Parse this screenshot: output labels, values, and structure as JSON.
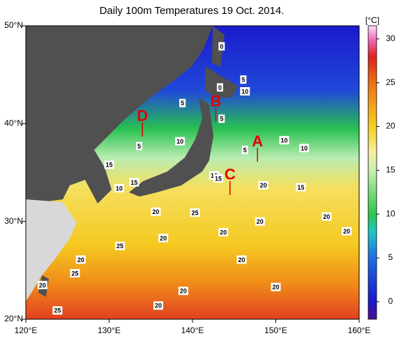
{
  "map": {
    "title": "Daily 100m Temperatures 19 Oct. 2014.",
    "lonlim": [
      120,
      160
    ],
    "latlim": [
      20,
      50
    ],
    "lon_ticks": [
      {
        "value": 120,
        "label": "120°E"
      },
      {
        "value": 130,
        "label": "130°E"
      },
      {
        "value": 140,
        "label": "140°E"
      },
      {
        "value": 150,
        "label": "150°E"
      },
      {
        "value": 160,
        "label": "160°E"
      }
    ],
    "lat_ticks": [
      {
        "value": 20,
        "label": "20°N"
      },
      {
        "value": 30,
        "label": "30°N"
      },
      {
        "value": 40,
        "label": "40°N"
      },
      {
        "value": 50,
        "label": "50°N"
      }
    ],
    "markers": [
      {
        "label": "A",
        "lon": 147.8,
        "lat": 38.1
      },
      {
        "label": "B",
        "lon": 142.8,
        "lat": 42.2
      },
      {
        "label": "C",
        "lon": 144.5,
        "lat": 34.7
      },
      {
        "label": "D",
        "lon": 134.0,
        "lat": 40.7
      }
    ],
    "contour_labels": [
      {
        "label": "0",
        "lon": 143.5,
        "lat": 47.9
      },
      {
        "label": "5",
        "lon": 146.1,
        "lat": 44.5
      },
      {
        "label": "0",
        "lon": 143.3,
        "lat": 43.7
      },
      {
        "label": "10",
        "lon": 146.3,
        "lat": 43.3
      },
      {
        "label": "5",
        "lon": 138.8,
        "lat": 42.1
      },
      {
        "label": "5",
        "lon": 143.5,
        "lat": 40.5
      },
      {
        "label": "10",
        "lon": 138.5,
        "lat": 38.2
      },
      {
        "label": "5",
        "lon": 133.6,
        "lat": 37.7
      },
      {
        "label": "5",
        "lon": 146.3,
        "lat": 37.3
      },
      {
        "label": "10",
        "lon": 151.0,
        "lat": 38.3
      },
      {
        "label": "10",
        "lon": 153.4,
        "lat": 37.5
      },
      {
        "label": "15",
        "lon": 130.0,
        "lat": 35.8
      },
      {
        "label": "15",
        "lon": 133.0,
        "lat": 34.0
      },
      {
        "label": "10",
        "lon": 131.2,
        "lat": 33.4
      },
      {
        "label": "10",
        "lon": 142.6,
        "lat": 34.7
      },
      {
        "label": "15",
        "lon": 143.1,
        "lat": 34.4
      },
      {
        "label": "20",
        "lon": 148.5,
        "lat": 33.7
      },
      {
        "label": "15",
        "lon": 153.0,
        "lat": 33.5
      },
      {
        "label": "20",
        "lon": 135.6,
        "lat": 31.0
      },
      {
        "label": "25",
        "lon": 140.3,
        "lat": 30.9
      },
      {
        "label": "20",
        "lon": 148.1,
        "lat": 30.0
      },
      {
        "label": "20",
        "lon": 156.1,
        "lat": 30.5
      },
      {
        "label": "20",
        "lon": 143.7,
        "lat": 28.9
      },
      {
        "label": "20",
        "lon": 158.5,
        "lat": 29.0
      },
      {
        "label": "25",
        "lon": 131.3,
        "lat": 27.5
      },
      {
        "label": "20",
        "lon": 136.5,
        "lat": 28.3
      },
      {
        "label": "20",
        "lon": 126.6,
        "lat": 26.1
      },
      {
        "label": "20",
        "lon": 145.9,
        "lat": 26.1
      },
      {
        "label": "25",
        "lon": 125.9,
        "lat": 24.7
      },
      {
        "label": "20",
        "lon": 122.0,
        "lat": 23.5
      },
      {
        "label": "20",
        "lon": 138.9,
        "lat": 22.9
      },
      {
        "label": "20",
        "lon": 150.0,
        "lat": 23.3
      },
      {
        "label": "20",
        "lon": 135.9,
        "lat": 21.4
      },
      {
        "label": "25",
        "lon": 123.8,
        "lat": 20.9
      }
    ]
  },
  "colorbar": {
    "unit": "[°C]",
    "lim": [
      -2,
      31.5
    ],
    "ticks": [
      0,
      5,
      10,
      15,
      20,
      25,
      30
    ],
    "stops": [
      {
        "value": -2,
        "color": "#4b0f8c"
      },
      {
        "value": 0,
        "color": "#1a1ad0"
      },
      {
        "value": 5,
        "color": "#1e6ee6"
      },
      {
        "value": 8,
        "color": "#1ec8c8"
      },
      {
        "value": 10,
        "color": "#2cc84a"
      },
      {
        "value": 15,
        "color": "#c8f0b0"
      },
      {
        "value": 17,
        "color": "#f5f0a0"
      },
      {
        "value": 20,
        "color": "#f5d020"
      },
      {
        "value": 25,
        "color": "#f07010"
      },
      {
        "value": 28,
        "color": "#e02020"
      },
      {
        "value": 30,
        "color": "#f070c0"
      },
      {
        "value": 31.5,
        "color": "#fce0f8"
      }
    ]
  }
}
